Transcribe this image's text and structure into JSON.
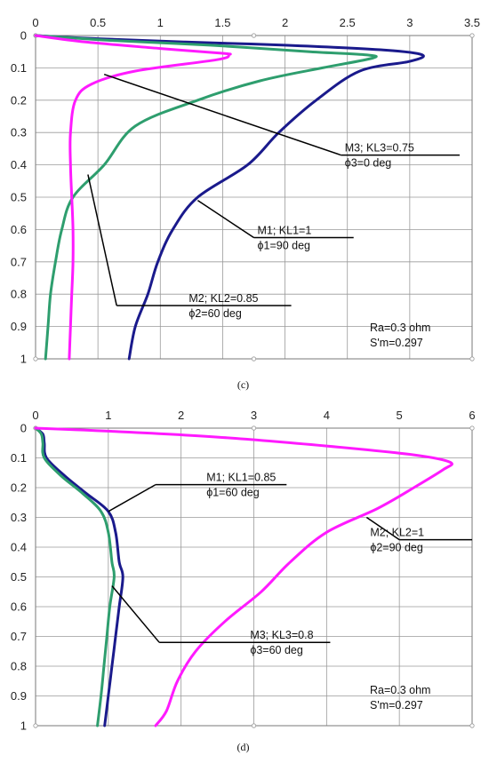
{
  "chart_data": [
    {
      "type": "line",
      "panel_label": "(c)",
      "xlim": [
        0,
        3.5
      ],
      "ylim": [
        0,
        1
      ],
      "x_ticks": [
        "0",
        "0.5",
        "1",
        "1.5",
        "2",
        "2.5",
        "3",
        "3.5"
      ],
      "y_ticks": [
        "0",
        "0.1",
        "0.2",
        "0.3",
        "0.4",
        "0.5",
        "0.6",
        "0.7",
        "0.8",
        "0.9",
        "1"
      ],
      "y_inverted": true,
      "x_axis_position": "top",
      "grid": true,
      "series": [
        {
          "color": "#1a1a8c",
          "points": [
            [
              0,
              0
            ],
            [
              0.5,
              0.01
            ],
            [
              1.2,
              0.02
            ],
            [
              2.0,
              0.03
            ],
            [
              2.8,
              0.045
            ],
            [
              3.1,
              0.06
            ],
            [
              3.0,
              0.08
            ],
            [
              2.6,
              0.11
            ],
            [
              2.25,
              0.2
            ],
            [
              1.95,
              0.3
            ],
            [
              1.7,
              0.4
            ],
            [
              1.3,
              0.5
            ],
            [
              1.1,
              0.6
            ],
            [
              0.98,
              0.7
            ],
            [
              0.9,
              0.8
            ],
            [
              0.8,
              0.9
            ],
            [
              0.75,
              1.0
            ]
          ]
        },
        {
          "color": "#2e9e6e",
          "points": [
            [
              0,
              0
            ],
            [
              0.6,
              0.015
            ],
            [
              1.4,
              0.03
            ],
            [
              2.2,
              0.05
            ],
            [
              2.65,
              0.06
            ],
            [
              2.7,
              0.07
            ],
            [
              2.3,
              0.1
            ],
            [
              1.8,
              0.14
            ],
            [
              1.3,
              0.2
            ],
            [
              0.8,
              0.28
            ],
            [
              0.55,
              0.4
            ],
            [
              0.3,
              0.5
            ],
            [
              0.21,
              0.6
            ],
            [
              0.16,
              0.7
            ],
            [
              0.12,
              0.8
            ],
            [
              0.1,
              0.9
            ],
            [
              0.08,
              1.0
            ]
          ]
        },
        {
          "color": "#ff1aff",
          "points": [
            [
              0,
              0
            ],
            [
              0.4,
              0.02
            ],
            [
              1.0,
              0.04
            ],
            [
              1.5,
              0.055
            ],
            [
              1.55,
              0.06
            ],
            [
              1.45,
              0.075
            ],
            [
              0.8,
              0.11
            ],
            [
              0.45,
              0.15
            ],
            [
              0.32,
              0.2
            ],
            [
              0.28,
              0.3
            ],
            [
              0.28,
              0.4
            ],
            [
              0.29,
              0.5
            ],
            [
              0.3,
              0.6
            ],
            [
              0.3,
              0.7
            ],
            [
              0.29,
              0.8
            ],
            [
              0.28,
              0.9
            ],
            [
              0.27,
              1.0
            ]
          ]
        }
      ],
      "annotations": [
        {
          "line1": "M3; KL3=0.75",
          "line2": "ϕ3=0 deg",
          "target": [
            0.55,
            0.12
          ],
          "elbow": [
            2.45,
            0.37
          ],
          "label_pos": [
            2.45,
            0.37
          ],
          "label_end": 3.4
        },
        {
          "line1": "M1;  KL1=1",
          "line2": "ϕ1=90 deg",
          "target": [
            1.3,
            0.51
          ],
          "elbow": [
            1.75,
            0.625
          ],
          "label_pos": [
            1.75,
            0.625
          ],
          "label_end": 2.55
        },
        {
          "line1": "M2; KL2=0.85",
          "line2": "ϕ2=60 deg",
          "target": [
            0.42,
            0.43
          ],
          "elbow": [
            0.65,
            0.835
          ],
          "label_pos": [
            1.2,
            0.835
          ],
          "label_end": 2.05
        }
      ],
      "footnote": [
        "Ra=0.3 ohm",
        "S'm=0.297"
      ]
    },
    {
      "type": "line",
      "panel_label": "(d)",
      "xlim": [
        0,
        6
      ],
      "ylim": [
        0,
        1
      ],
      "x_ticks": [
        "0",
        "1",
        "2",
        "3",
        "4",
        "5",
        "6"
      ],
      "y_ticks": [
        "0",
        "0.1",
        "0.2",
        "0.3",
        "0.4",
        "0.5",
        "0.6",
        "0.7",
        "0.8",
        "0.9",
        "1"
      ],
      "y_inverted": true,
      "x_axis_position": "top",
      "grid": true,
      "series": [
        {
          "color": "#1a1a8c",
          "points": [
            [
              0,
              0
            ],
            [
              0.1,
              0.02
            ],
            [
              0.12,
              0.05
            ],
            [
              0.15,
              0.1
            ],
            [
              0.4,
              0.16
            ],
            [
              0.7,
              0.22
            ],
            [
              1.0,
              0.28
            ],
            [
              1.1,
              0.35
            ],
            [
              1.15,
              0.45
            ],
            [
              1.2,
              0.5
            ],
            [
              1.15,
              0.6
            ],
            [
              1.1,
              0.7
            ],
            [
              1.05,
              0.8
            ],
            [
              1.0,
              0.9
            ],
            [
              0.95,
              1.0
            ]
          ]
        },
        {
          "color": "#2e9e6e",
          "points": [
            [
              0,
              0
            ],
            [
              0.08,
              0.02
            ],
            [
              0.1,
              0.05
            ],
            [
              0.12,
              0.1
            ],
            [
              0.35,
              0.16
            ],
            [
              0.65,
              0.22
            ],
            [
              0.9,
              0.28
            ],
            [
              1.0,
              0.35
            ],
            [
              1.05,
              0.45
            ],
            [
              1.08,
              0.5
            ],
            [
              1.02,
              0.6
            ],
            [
              0.98,
              0.7
            ],
            [
              0.94,
              0.8
            ],
            [
              0.9,
              0.9
            ],
            [
              0.85,
              1.0
            ]
          ]
        },
        {
          "color": "#ff1aff",
          "points": [
            [
              0,
              0
            ],
            [
              1.0,
              0.01
            ],
            [
              2.5,
              0.03
            ],
            [
              4.0,
              0.06
            ],
            [
              5.2,
              0.09
            ],
            [
              5.7,
              0.115
            ],
            [
              5.6,
              0.14
            ],
            [
              5.2,
              0.2
            ],
            [
              4.7,
              0.27
            ],
            [
              4.0,
              0.35
            ],
            [
              3.5,
              0.45
            ],
            [
              3.1,
              0.55
            ],
            [
              2.6,
              0.65
            ],
            [
              2.2,
              0.75
            ],
            [
              1.95,
              0.85
            ],
            [
              1.8,
              0.95
            ],
            [
              1.65,
              1.0
            ]
          ]
        }
      ],
      "annotations": [
        {
          "line1": "M1; KL1=0.85",
          "line2": "ϕ1=60 deg",
          "target": [
            1.0,
            0.28
          ],
          "elbow": [
            1.65,
            0.19
          ],
          "label_pos": [
            2.3,
            0.19
          ],
          "label_end": 3.45
        },
        {
          "line1": "M2; KL2=1",
          "line2": "ϕ2=90 deg",
          "target": [
            4.55,
            0.3
          ],
          "elbow": [
            5.0,
            0.375
          ],
          "label_pos": [
            4.55,
            0.375
          ],
          "label_end": 6.0
        },
        {
          "line1": "M3; KL3=0.8",
          "line2": "ϕ3=60 deg",
          "target": [
            1.05,
            0.53
          ],
          "elbow": [
            1.7,
            0.72
          ],
          "label_pos": [
            2.9,
            0.72
          ],
          "label_end": 4.05
        }
      ],
      "footnote": [
        "Ra=0.3 ohm",
        "S'm=0.297"
      ]
    }
  ]
}
